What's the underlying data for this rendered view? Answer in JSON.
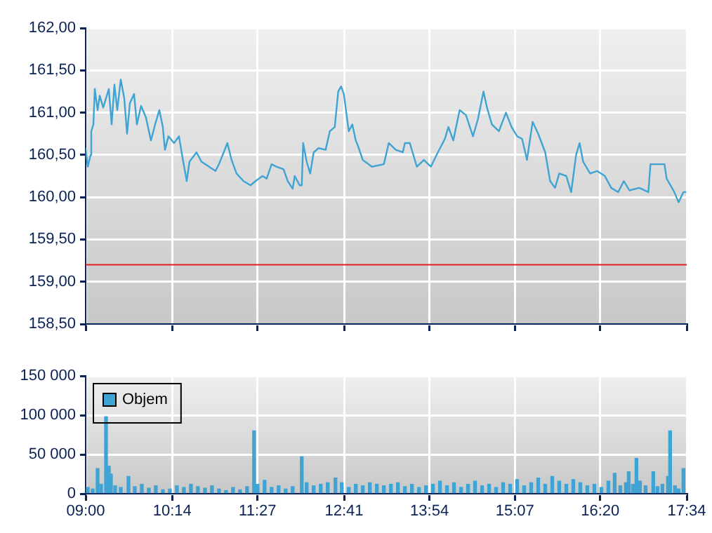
{
  "chart_data": [
    {
      "type": "line",
      "xlim": [
        9,
        17.5667
      ],
      "xticks": [
        {
          "value": 9,
          "label": null
        },
        {
          "value": 10.2333,
          "label": null
        },
        {
          "value": 11.45,
          "label": null
        },
        {
          "value": 12.6833,
          "label": null
        },
        {
          "value": 13.9,
          "label": null
        },
        {
          "value": 15.1167,
          "label": null
        },
        {
          "value": 16.3333,
          "label": null
        },
        {
          "value": 17.5667,
          "label": null
        }
      ],
      "ylim": [
        158.5,
        162
      ],
      "yticks": [
        {
          "value": 158.5,
          "label": "158,50"
        },
        {
          "value": 159,
          "label": "159,00"
        },
        {
          "value": 159.5,
          "label": "159,50"
        },
        {
          "value": 160,
          "label": "160,00"
        },
        {
          "value": 160.5,
          "label": "160,50"
        },
        {
          "value": 161,
          "label": "161,00"
        },
        {
          "value": 161.5,
          "label": "161,50"
        },
        {
          "value": 162,
          "label": "162,00"
        }
      ],
      "tick_labels": "y",
      "grid": true,
      "legend": false,
      "marker": "none",
      "color": "#3fa3d3",
      "x": [
        9.0,
        9.03,
        9.07,
        9.08,
        9.11,
        9.13,
        9.17,
        9.2,
        9.25,
        9.33,
        9.37,
        9.41,
        9.45,
        9.5,
        9.55,
        9.59,
        9.63,
        9.69,
        9.73,
        9.79,
        9.86,
        9.93,
        9.99,
        10.05,
        10.1,
        10.13,
        10.18,
        10.26,
        10.33,
        10.38,
        10.44,
        10.48,
        10.58,
        10.65,
        10.85,
        10.9,
        11.02,
        11.08,
        11.15,
        11.25,
        11.35,
        11.42,
        11.52,
        11.58,
        11.65,
        11.72,
        11.82,
        11.88,
        11.95,
        11.98,
        12.05,
        12.08,
        12.1,
        12.15,
        12.2,
        12.25,
        12.32,
        12.42,
        12.48,
        12.55,
        12.6,
        12.64,
        12.68,
        12.75,
        12.8,
        12.85,
        12.88,
        12.95,
        13.08,
        13.25,
        13.32,
        13.42,
        13.52,
        13.55,
        13.62,
        13.72,
        13.82,
        13.92,
        14.02,
        14.12,
        14.17,
        14.24,
        14.33,
        14.42,
        14.52,
        14.59,
        14.67,
        14.72,
        14.79,
        14.89,
        14.99,
        15.07,
        15.15,
        15.22,
        15.29,
        15.37,
        15.45,
        15.55,
        15.62,
        15.69,
        15.75,
        15.85,
        15.92,
        15.99,
        16.04,
        16.09,
        16.19,
        16.29,
        16.4,
        16.49,
        16.59,
        16.67,
        16.75,
        16.89,
        17.02,
        17.05,
        17.25,
        17.28,
        17.39,
        17.45,
        17.52,
        17.56
      ],
      "values": [
        160.58,
        160.36,
        160.5,
        160.78,
        160.86,
        161.28,
        161.03,
        161.2,
        161.06,
        161.28,
        160.86,
        161.33,
        161.03,
        161.39,
        161.17,
        160.75,
        161.11,
        161.22,
        160.86,
        161.08,
        160.94,
        160.67,
        160.86,
        161.03,
        160.83,
        160.56,
        160.72,
        160.64,
        160.72,
        160.47,
        160.19,
        160.42,
        160.53,
        160.42,
        160.31,
        160.39,
        160.64,
        160.44,
        160.28,
        160.19,
        160.14,
        160.19,
        160.25,
        160.22,
        160.39,
        160.36,
        160.33,
        160.19,
        160.1,
        160.25,
        160.14,
        160.14,
        160.64,
        160.42,
        160.28,
        160.53,
        160.58,
        160.56,
        160.78,
        160.83,
        161.25,
        161.31,
        161.22,
        160.78,
        160.86,
        160.67,
        160.61,
        160.44,
        160.36,
        160.39,
        160.64,
        160.56,
        160.53,
        160.64,
        160.64,
        160.36,
        160.44,
        160.36,
        160.53,
        160.69,
        160.83,
        160.67,
        161.03,
        160.97,
        160.72,
        160.92,
        161.25,
        161.06,
        160.86,
        160.78,
        161.0,
        160.83,
        160.72,
        160.69,
        160.44,
        160.89,
        160.75,
        160.53,
        160.19,
        160.11,
        160.28,
        160.25,
        160.06,
        160.5,
        160.64,
        160.42,
        160.28,
        160.31,
        160.25,
        160.11,
        160.06,
        160.19,
        160.08,
        160.11,
        160.06,
        160.39,
        160.39,
        160.22,
        160.06,
        159.94,
        160.06,
        160.06
      ],
      "ref_lines": [
        {
          "axis": "y",
          "value": 159.2,
          "color": "#e02020"
        }
      ]
    },
    {
      "type": "bar",
      "xlim": [
        9,
        17.5667
      ],
      "xticks": [
        {
          "value": 9,
          "label": "09:00"
        },
        {
          "value": 10.2333,
          "label": "10:14"
        },
        {
          "value": 11.45,
          "label": "11:27"
        },
        {
          "value": 12.6833,
          "label": "12:41"
        },
        {
          "value": 13.9,
          "label": "13:54"
        },
        {
          "value": 15.1167,
          "label": "15:07"
        },
        {
          "value": 16.3333,
          "label": "16:20"
        },
        {
          "value": 17.5667,
          "label": "17:34"
        }
      ],
      "ylim": [
        0,
        150000
      ],
      "yticks": [
        {
          "value": 0,
          "label": "0"
        },
        {
          "value": 50000,
          "label": "50 000"
        },
        {
          "value": 100000,
          "label": "100 000"
        },
        {
          "value": 150000,
          "label": "150 000"
        }
      ],
      "grid": true,
      "legend": "top left",
      "x": [
        9.03,
        9.1,
        9.17,
        9.22,
        9.29,
        9.33,
        9.36,
        9.42,
        9.5,
        9.61,
        9.7,
        9.8,
        9.9,
        10.0,
        10.1,
        10.2,
        10.3,
        10.4,
        10.5,
        10.6,
        10.7,
        10.8,
        10.9,
        11.0,
        11.1,
        11.2,
        11.3,
        11.4,
        11.45,
        11.55,
        11.65,
        11.75,
        11.85,
        11.95,
        12.08,
        12.15,
        12.25,
        12.35,
        12.45,
        12.56,
        12.65,
        12.75,
        12.85,
        12.95,
        13.05,
        13.15,
        13.25,
        13.35,
        13.45,
        13.55,
        13.65,
        13.75,
        13.85,
        13.95,
        14.05,
        14.15,
        14.25,
        14.35,
        14.45,
        14.55,
        14.65,
        14.75,
        14.85,
        14.95,
        15.05,
        15.15,
        15.25,
        15.35,
        15.45,
        15.55,
        15.65,
        15.75,
        15.85,
        15.95,
        16.05,
        16.15,
        16.25,
        16.35,
        16.45,
        16.54,
        16.62,
        16.7,
        16.74,
        16.8,
        16.85,
        16.9,
        16.98,
        17.09,
        17.15,
        17.22,
        17.3,
        17.33,
        17.4,
        17.45,
        17.52
      ],
      "series": [
        {
          "name": "Objem",
          "color": "#3fa3d3",
          "values": [
            8000,
            6000,
            32000,
            12000,
            98000,
            35000,
            25000,
            10000,
            8000,
            22000,
            9000,
            12000,
            7000,
            10000,
            5000,
            6000,
            10000,
            8000,
            12000,
            9000,
            7000,
            10000,
            6000,
            4000,
            8000,
            5000,
            9000,
            80000,
            12000,
            17000,
            8000,
            10000,
            6000,
            9000,
            47000,
            14000,
            10000,
            12000,
            14000,
            20000,
            14000,
            8000,
            12000,
            10000,
            14000,
            12000,
            10000,
            12000,
            14000,
            9000,
            12000,
            8000,
            10000,
            12000,
            16000,
            10000,
            14000,
            8000,
            12000,
            16000,
            10000,
            12000,
            8000,
            14000,
            12000,
            18000,
            10000,
            14000,
            20000,
            12000,
            22000,
            16000,
            12000,
            18000,
            14000,
            10000,
            12000,
            8000,
            16000,
            26000,
            10000,
            14000,
            28000,
            12000,
            45000,
            16000,
            10000,
            28000,
            9000,
            12000,
            22000,
            80000,
            10000,
            6000,
            32000
          ]
        }
      ]
    }
  ]
}
